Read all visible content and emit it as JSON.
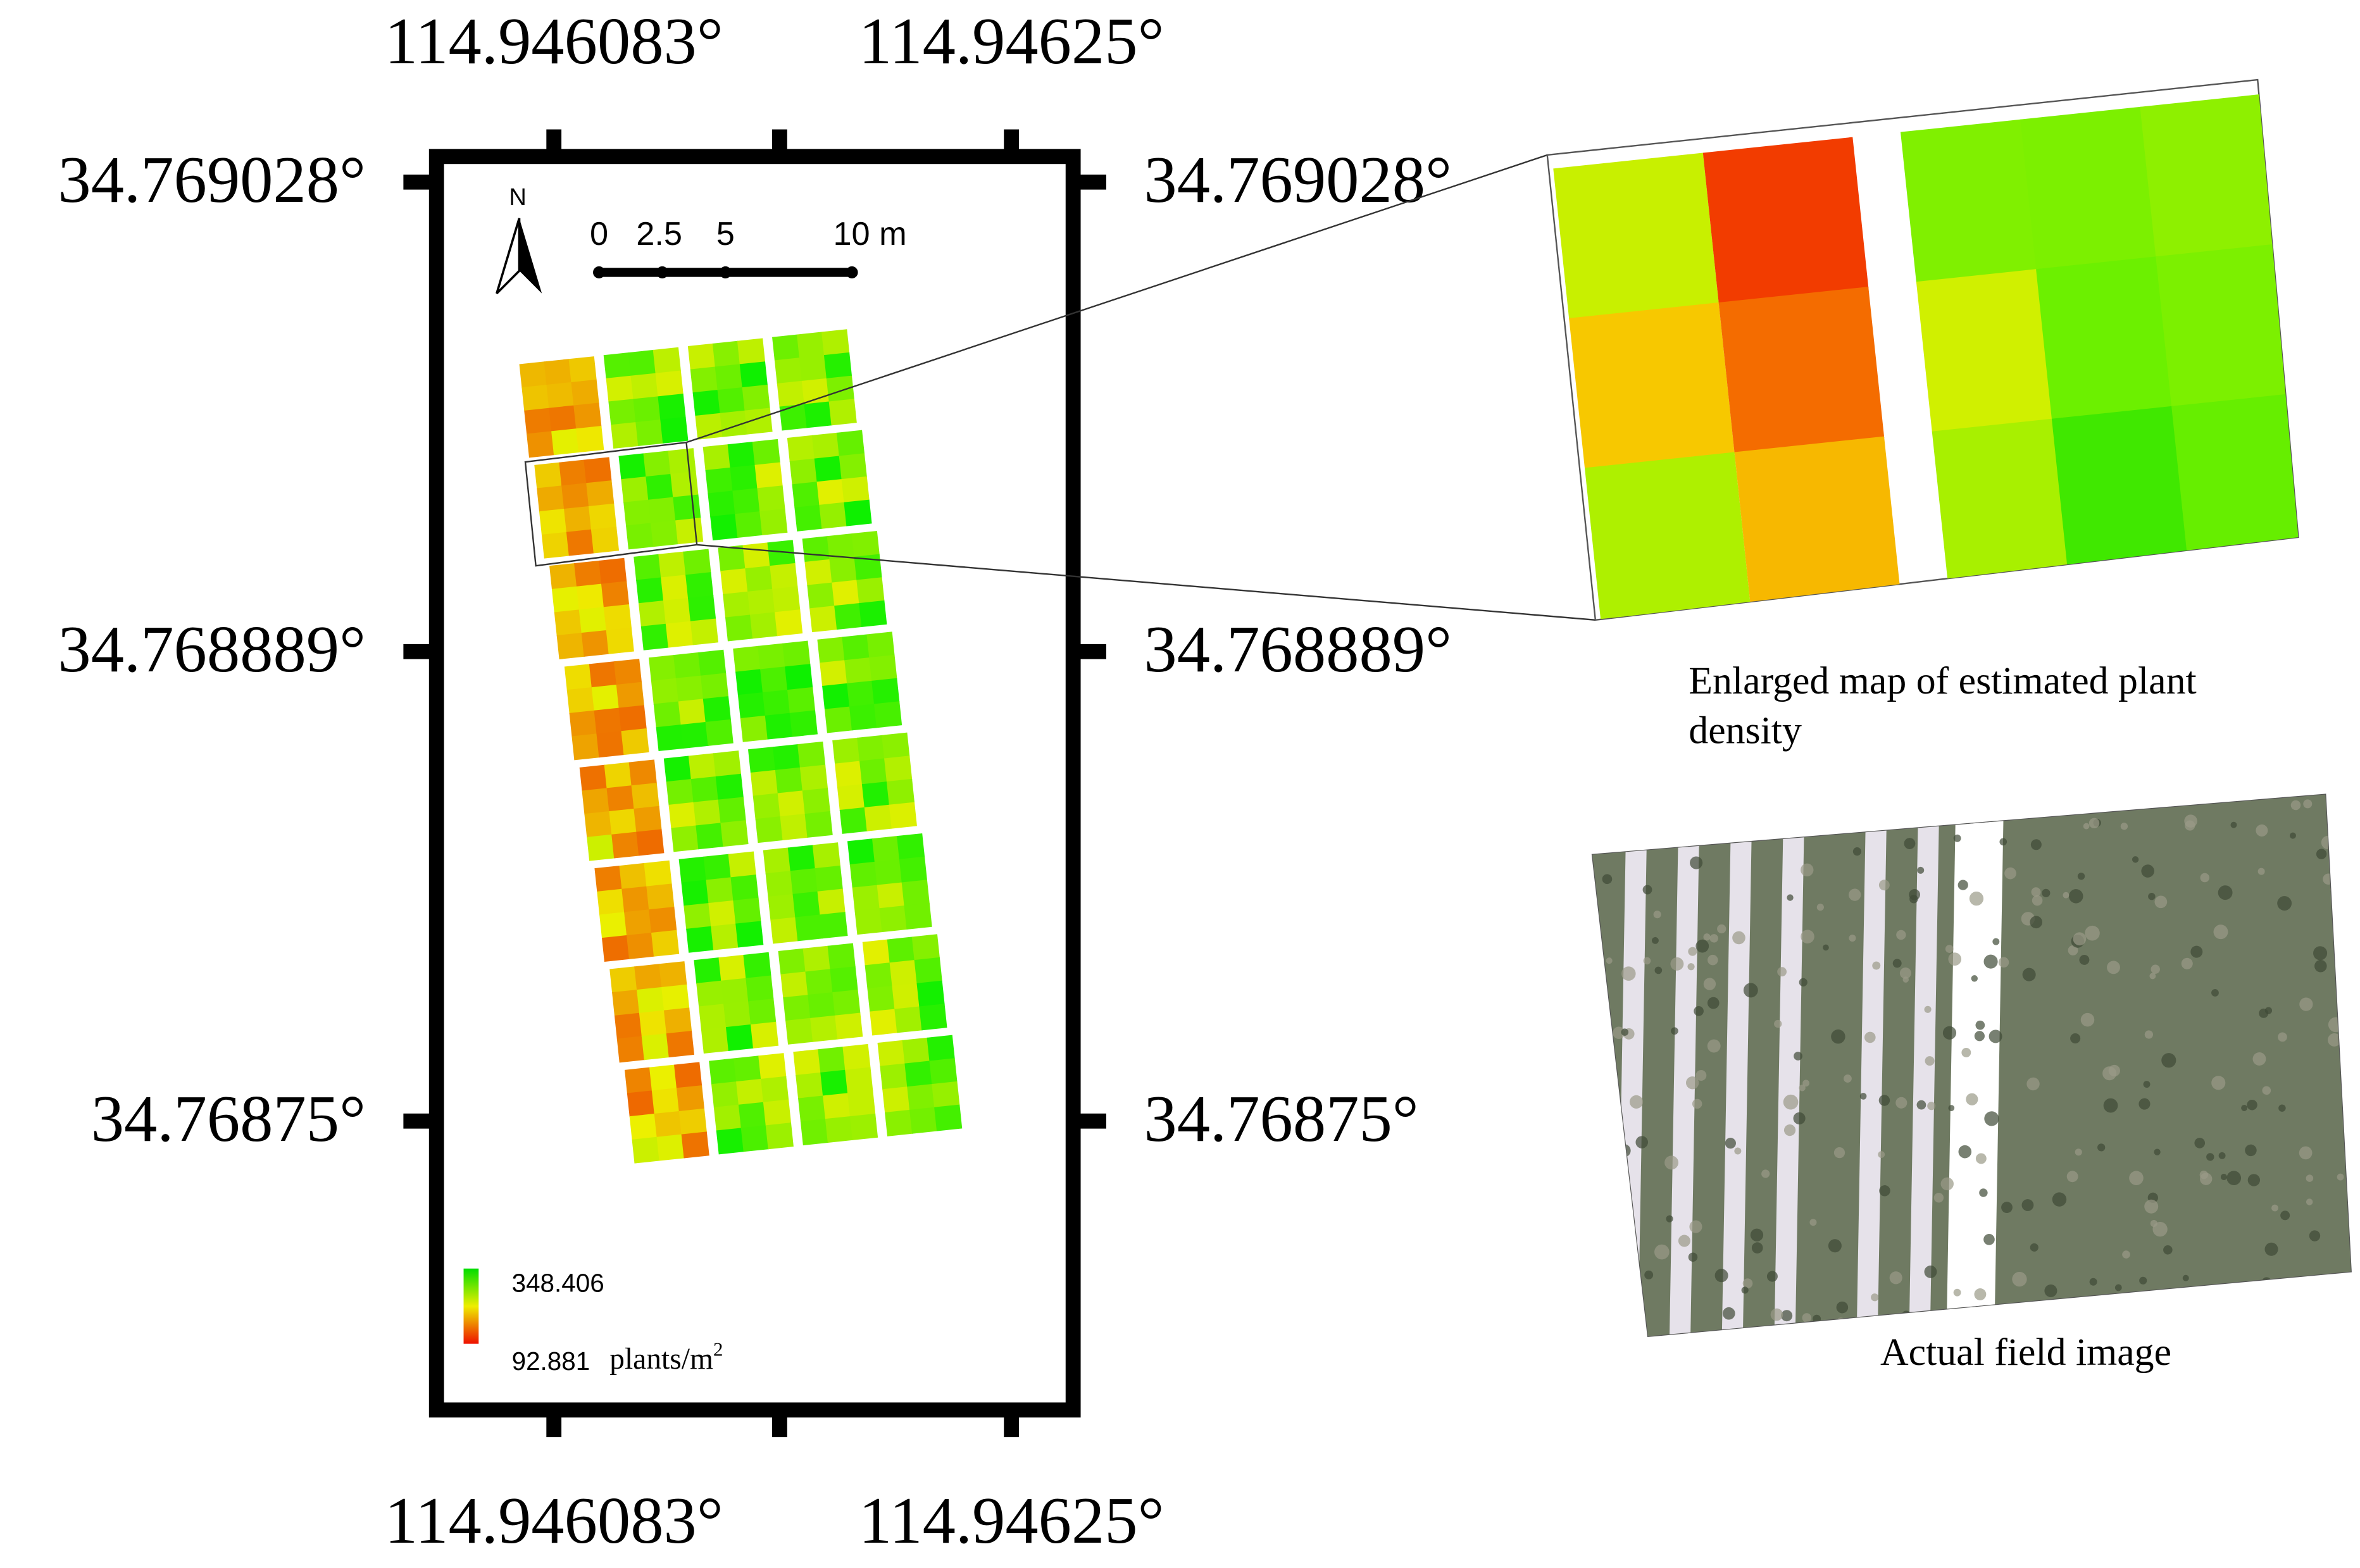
{
  "map": {
    "lon_labels": [
      "114.946083°",
      "114.94625°"
    ],
    "lat_labels": [
      "34.769028°",
      "34.768889°",
      "34.76875°"
    ],
    "north": "N",
    "scale_labels": [
      "0",
      "2.5",
      "5",
      "10 m"
    ],
    "legend": {
      "high": "348.406",
      "low": "92.881",
      "unit": "plants/m",
      "unit_sup": "2"
    },
    "enlarged_caption": [
      "Enlarged map of estimated plant",
      "density"
    ],
    "field_caption": "Actual field image"
  }
}
